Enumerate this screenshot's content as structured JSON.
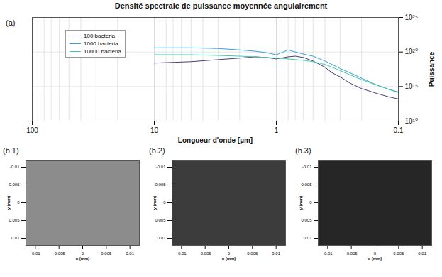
{
  "chart_data": [
    {
      "type": "line",
      "label": "(a)",
      "title": "Densité spectrale de puissance moyennée angulairement",
      "xlabel": "Longueur d'onde [µm]",
      "ylabel": "Puissance",
      "log": true,
      "grid": true,
      "legend": "top-left",
      "xlim": [
        100,
        0.1
      ],
      "xticks": [
        100,
        10,
        1,
        0.1
      ],
      "ylim": [
        10000000000.0,
        1e+25
      ],
      "yticks": [
        {
          "value": 10000000000.0,
          "label": "10¹⁰"
        },
        {
          "value": 1000000000000000.0,
          "label": "10¹⁵"
        },
        {
          "value": 1e+20,
          "label": "10²⁰"
        },
        {
          "value": 1e+25,
          "label": "10²⁵"
        }
      ],
      "x": [
        10,
        5,
        3,
        2,
        1.5,
        1.2,
        1,
        0.8,
        0.7,
        0.6,
        0.5,
        0.4,
        0.35,
        0.3,
        0.25,
        0.2,
        0.15,
        0.12,
        0.1
      ],
      "series": [
        {
          "name": "100 bacteria",
          "color": "#4b3a7a",
          "values": [
            2.5e+18,
            4e+18,
            7.9e+18,
            1.3e+19,
            2e+19,
            1.6e+19,
            1e+19,
            2e+19,
            2.5e+19,
            1.6e+19,
            5e+18,
            6.3e+17,
            1e+17,
            2.5e+16,
            3200000000000000.0,
            500000000000000.0,
            100000000000000.0,
            32000000000000.0,
            16000000000000.0
          ]
        },
        {
          "name": "1000 bacteria",
          "color": "#3a9fd8",
          "values": [
            4e+20,
            4e+20,
            3.2e+20,
            2e+20,
            1.3e+20,
            7.9e+19,
            4e+19,
            2e+20,
            1e+20,
            5e+19,
            2.5e+19,
            5e+18,
            1.6e+18,
            4e+17,
            1e+17,
            1.6e+16,
            1600000000000000.0,
            400000000000000.0,
            160000000000000.0
          ]
        },
        {
          "name": "10000 bacteria",
          "color": "#3ec9a7",
          "values": [
            4e+19,
            4e+19,
            3.2e+19,
            2.5e+19,
            2e+19,
            1.6e+19,
            1.3e+19,
            1e+19,
            7.9e+18,
            6.3e+18,
            4e+18,
            1.6e+18,
            6.3e+17,
            2e+17,
            5e+16,
            1e+16,
            1600000000000000.0,
            400000000000000.0,
            130000000000000.0
          ]
        }
      ]
    },
    {
      "type": "image",
      "label": "(b.1)",
      "xlabel": "x (mm)",
      "ylabel": "y (mm)",
      "color": "#8c8c8c",
      "xlim": [
        -0.012,
        0.012
      ],
      "xticks": [
        -0.01,
        -0.005,
        0,
        0.005,
        0.01
      ],
      "ylim": [
        -0.012,
        0.012
      ],
      "yticks": [
        -0.01,
        -0.005,
        0,
        0.005,
        0.01
      ]
    },
    {
      "type": "image",
      "label": "(b.2)",
      "xlabel": "x (mm)",
      "ylabel": "y (mm)",
      "color": "#3c3c3c",
      "xlim": [
        -0.012,
        0.012
      ],
      "xticks": [
        -0.01,
        -0.005,
        0,
        0.005,
        0.01
      ],
      "ylim": [
        -0.012,
        0.012
      ],
      "yticks": [
        -0.01,
        -0.005,
        0,
        0.005,
        0.01
      ]
    },
    {
      "type": "image",
      "label": "(b.3)",
      "xlabel": "x (mm)",
      "ylabel": "y (mm)",
      "color": "#262626",
      "xlim": [
        -0.012,
        0.012
      ],
      "xticks": [
        -0.01,
        -0.005,
        0,
        0.005,
        0.01
      ],
      "ylim": [
        -0.012,
        0.012
      ],
      "yticks": [
        -0.01,
        -0.005,
        0,
        0.005,
        0.01
      ]
    }
  ]
}
